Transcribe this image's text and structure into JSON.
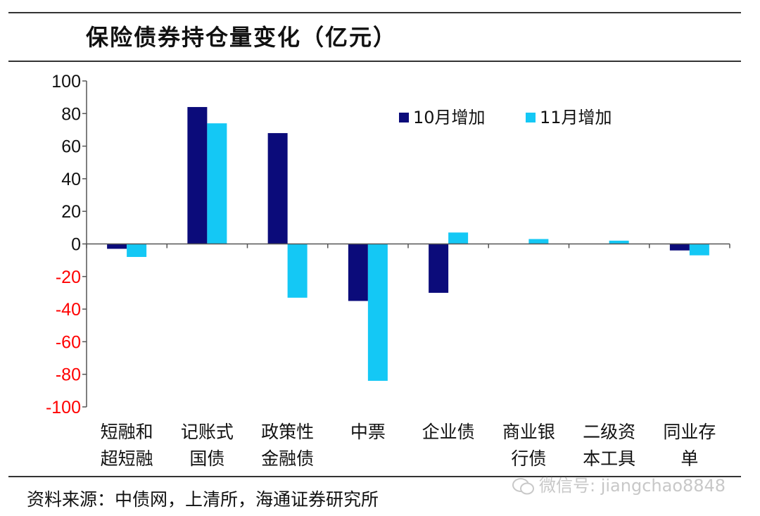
{
  "title": "保险债券持仓量变化（亿元）",
  "source": "资料来源：中债网，上清所，海通证券研究所",
  "watermark": "微信号: jiangchao8848",
  "colors": {
    "series1": "#0b0b7a",
    "series2": "#14c8f5",
    "negative_tick": "#ff0000",
    "positive_tick": "#111111",
    "axis": "#555555"
  },
  "chart_data": {
    "type": "bar",
    "title": "保险债券持仓量变化（亿元）",
    "categories": [
      [
        "短融和",
        "超短融"
      ],
      [
        "记账式",
        "国债"
      ],
      [
        "政策性",
        "金融债"
      ],
      [
        "中票"
      ],
      [
        "企业债"
      ],
      [
        "商业银",
        "行债"
      ],
      [
        "二级资",
        "本工具"
      ],
      [
        "同业存",
        "单"
      ]
    ],
    "series": [
      {
        "name": "10月增加",
        "values": [
          -3,
          84,
          68,
          -35,
          -30,
          0,
          0,
          -4
        ]
      },
      {
        "name": "11月增加",
        "values": [
          -8,
          74,
          -33,
          -84,
          7,
          3,
          2,
          -7
        ]
      }
    ],
    "ylim": [
      -100,
      100
    ],
    "yticks": [
      100,
      80,
      60,
      40,
      20,
      0,
      -20,
      -40,
      -60,
      -80,
      -100
    ],
    "legend": "top-right",
    "grid": false
  }
}
